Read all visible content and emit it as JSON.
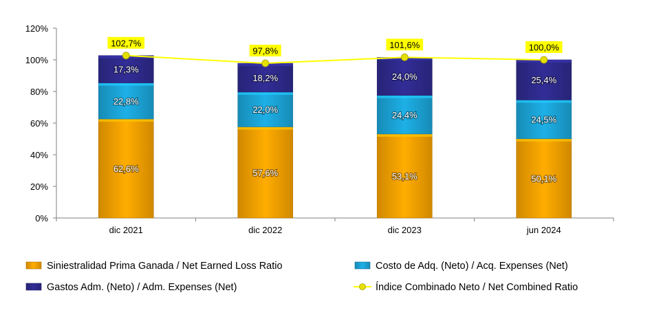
{
  "chart_data": {
    "type": "bar",
    "stacked": true,
    "categories": [
      "dic 2021",
      "dic 2022",
      "dic 2023",
      "jun 2024"
    ],
    "series": [
      {
        "name": "Siniestralidad Prima Ganada / Net Earned Loss Ratio",
        "kind": "bar",
        "color": "#F5A000",
        "values": [
          62.6,
          57.6,
          53.1,
          50.1
        ],
        "labels": [
          "62,6%",
          "57,6%",
          "53,1%",
          "50,1%"
        ]
      },
      {
        "name": "Costo de Adq. (Neto) / Acq. Expenses (Net)",
        "kind": "bar",
        "color": "#1BA3D6",
        "values": [
          22.8,
          22.0,
          24.4,
          24.5
        ],
        "labels": [
          "22,8%",
          "22,0%",
          "24,4%",
          "24,5%"
        ]
      },
      {
        "name": "Gastos Adm. (Neto) / Adm. Expenses (Net)",
        "kind": "bar",
        "color": "#2E2A8C",
        "values": [
          17.3,
          18.2,
          24.0,
          25.4
        ],
        "labels": [
          "17,3%",
          "18,2%",
          "24,0%",
          "25,4%"
        ]
      },
      {
        "name": "Índice Combinado Neto / Net Combined Ratio",
        "kind": "line",
        "color": "#FFFF00",
        "marker_color": "#E5E000",
        "values": [
          102.7,
          97.8,
          101.6,
          100.0
        ],
        "labels": [
          "102,7%",
          "97,8%",
          "101,6%",
          "100,0%"
        ]
      }
    ],
    "yticks": [
      "0%",
      "20%",
      "40%",
      "60%",
      "80%",
      "100%",
      "120%"
    ],
    "ylim": [
      0,
      120
    ],
    "legend_position": "bottom",
    "grid": false
  }
}
